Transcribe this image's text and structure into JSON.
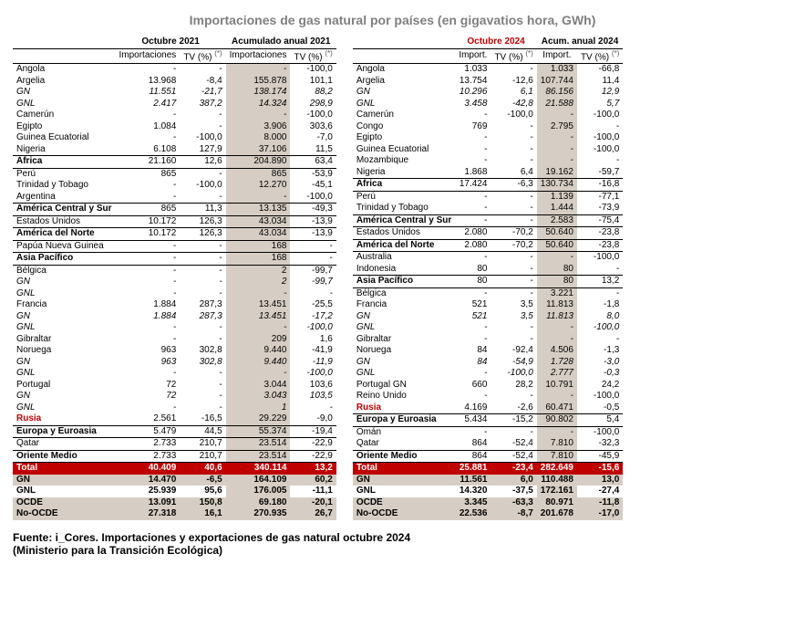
{
  "title": "Importaciones de gas natural por países (en gigavatios hora, GWh)",
  "sup": "(*)",
  "left": {
    "hdr_period": "Octubre 2021",
    "hdr_cum": "Acumulado anual 2021",
    "col_imp": "Importaciones",
    "col_tv": "TV (%)",
    "rows": [
      {
        "l": "Angola",
        "a": "-",
        "b": "-",
        "c": "-",
        "d": "-100,0"
      },
      {
        "l": "Argelia",
        "a": "13.968",
        "b": "-8,4",
        "c": "155.878",
        "d": "101,1"
      },
      {
        "l": "GN",
        "i": 1,
        "a": "11.551",
        "b": "-21,7",
        "c": "138.174",
        "d": "88,2"
      },
      {
        "l": "GNL",
        "i": 1,
        "a": "2.417",
        "b": "387,2",
        "c": "14.324",
        "d": "298,9"
      },
      {
        "l": "Camerún",
        "a": "-",
        "b": "-",
        "c": "-",
        "d": "-100,0"
      },
      {
        "l": "Egipto",
        "a": "1.084",
        "b": "-",
        "c": "3.906",
        "d": "303,6"
      },
      {
        "l": "Guinea Ecuatorial",
        "a": "-",
        "b": "-100,0",
        "c": "8.000",
        "d": "-7,0"
      },
      {
        "l": "Nigeria",
        "a": "6.108",
        "b": "127,9",
        "c": "37.106",
        "d": "11,5"
      },
      {
        "l": "África",
        "bold": 1,
        "rule": 1,
        "a": "21.160",
        "b": "12,6",
        "c": "204.890",
        "d": "63,4"
      },
      {
        "l": "Perú",
        "a": "865",
        "b": "-",
        "c": "865",
        "d": "-53,9"
      },
      {
        "l": "Trinidad y Tobago",
        "a": "-",
        "b": "-100,0",
        "c": "12.270",
        "d": "-45,1"
      },
      {
        "l": "Argentina",
        "a": "-",
        "b": "-",
        "c": "-",
        "d": "-100,0"
      },
      {
        "l": "América Central y Sur",
        "bold": 1,
        "rule": 1,
        "a": "865",
        "b": "11,3",
        "c": "13.135",
        "d": "-49,3"
      },
      {
        "l": "Estados Unidos",
        "a": "10.172",
        "b": "126,3",
        "c": "43.034",
        "d": "-13,9"
      },
      {
        "l": "América del Norte",
        "bold": 1,
        "rule": 1,
        "a": "10.172",
        "b": "126,3",
        "c": "43.034",
        "d": "-13,9"
      },
      {
        "l": "Papúa Nueva Guinea",
        "a": "-",
        "b": "-",
        "c": "168",
        "d": "-"
      },
      {
        "l": "Asia Pacífico",
        "bold": 1,
        "rule": 1,
        "a": "-",
        "b": "-",
        "c": "168",
        "d": "-"
      },
      {
        "l": "Bélgica",
        "a": "-",
        "b": "-",
        "c": "2",
        "d": "-99,7"
      },
      {
        "l": "GN",
        "i": 1,
        "a": "-",
        "b": "-",
        "c": "2",
        "d": "-99,7"
      },
      {
        "l": "GNL",
        "i": 1,
        "a": "-",
        "b": "-",
        "c": "-",
        "d": "-"
      },
      {
        "l": "Francia",
        "a": "1.884",
        "b": "287,3",
        "c": "13.451",
        "d": "-25,5"
      },
      {
        "l": "GN",
        "i": 1,
        "a": "1.884",
        "b": "287,3",
        "c": "13.451",
        "d": "-17,2"
      },
      {
        "l": "GNL",
        "i": 1,
        "a": "-",
        "b": "-",
        "c": "-",
        "d": "-100,0"
      },
      {
        "l": "Gibraltar",
        "a": "-",
        "b": "-",
        "c": "209",
        "d": "1,6"
      },
      {
        "l": "Noruega",
        "a": "963",
        "b": "302,8",
        "c": "9.440",
        "d": "-41,9"
      },
      {
        "l": "GN",
        "i": 1,
        "a": "963",
        "b": "302,8",
        "c": "9.440",
        "d": "-11,9"
      },
      {
        "l": "GNL",
        "i": 1,
        "a": "-",
        "b": "-",
        "c": "-",
        "d": "-100,0"
      },
      {
        "l": "Portugal",
        "a": "72",
        "b": "-",
        "c": "3.044",
        "d": "103,6"
      },
      {
        "l": "GN",
        "i": 1,
        "a": "72",
        "b": "-",
        "c": "3.043",
        "d": "103,5"
      },
      {
        "l": "GNL",
        "i": 1,
        "a": "-",
        "b": "-",
        "c": "1",
        "d": "-"
      },
      {
        "l": "Rusia",
        "red": 1,
        "a": "2.561",
        "b": "-16,5",
        "c": "29.229",
        "d": "-9,0"
      },
      {
        "l": "Europa y Euroasia",
        "bold": 1,
        "rule": 1,
        "a": "5.479",
        "b": "44,5",
        "c": "55.374",
        "d": "-19,4"
      },
      {
        "l": "Qatar",
        "a": "2.733",
        "b": "210,7",
        "c": "23.514",
        "d": "-22,9"
      },
      {
        "l": "Oriente Medio",
        "bold": 1,
        "rule": 1,
        "a": "2.733",
        "b": "210,7",
        "c": "23.514",
        "d": "-22,9"
      },
      {
        "l": "Total",
        "bg": 1,
        "a": "40.409",
        "b": "40,6",
        "c": "340.114",
        "d": "13,2"
      },
      {
        "l": "GN",
        "bold": 1,
        "sh": 1,
        "a": "14.470",
        "b": "-6,5",
        "c": "164.109",
        "d": "60,2"
      },
      {
        "l": "GNL",
        "bold": 1,
        "sd": 1,
        "a": "25.939",
        "b": "95,6",
        "c": "176.005",
        "d": "-11,1"
      },
      {
        "l": "OCDE",
        "bold": 1,
        "sh": 1,
        "a": "13.091",
        "b": "150,8",
        "c": "69.180",
        "d": "-20,1"
      },
      {
        "l": "No-OCDE",
        "bold": 1,
        "sh": 1,
        "a": "27.318",
        "b": "16,1",
        "c": "270.935",
        "d": "26,7"
      }
    ]
  },
  "right": {
    "hdr_period": "Octubre 2024",
    "hdr_cum": "Acum. anual 2024",
    "col_imp": "Import.",
    "col_tv": "TV (%)",
    "rows": [
      {
        "l": "Angola",
        "a": "1.033",
        "b": "-",
        "c": "1.033",
        "d": "-66,8"
      },
      {
        "l": "Argelia",
        "a": "13.754",
        "b": "-12,6",
        "c": "107.744",
        "d": "11,4"
      },
      {
        "l": "GN",
        "i": 1,
        "a": "10.296",
        "b": "6,1",
        "c": "86.156",
        "d": "12,9"
      },
      {
        "l": "GNL",
        "i": 1,
        "a": "3.458",
        "b": "-42,8",
        "c": "21.588",
        "d": "5,7"
      },
      {
        "l": "Camerún",
        "a": "-",
        "b": "-100,0",
        "c": "-",
        "d": "-100,0"
      },
      {
        "l": "Congo",
        "a": "769",
        "b": "-",
        "c": "2.795",
        "d": "-"
      },
      {
        "l": "Egipto",
        "a": "-",
        "b": "-",
        "c": "-",
        "d": "-100,0"
      },
      {
        "l": "Guinea Ecuatorial",
        "a": "-",
        "b": "-",
        "c": "-",
        "d": "-100,0"
      },
      {
        "l": "Mozambique",
        "a": "-",
        "b": "-",
        "c": "-",
        "d": "-"
      },
      {
        "l": "Nigeria",
        "a": "1.868",
        "b": "6,4",
        "c": "19.162",
        "d": "-59,7"
      },
      {
        "l": "África",
        "bold": 1,
        "rule": 1,
        "a": "17.424",
        "b": "-6,3",
        "c": "130.734",
        "d": "-16,8"
      },
      {
        "l": "Perú",
        "a": "-",
        "b": "-",
        "c": "1.139",
        "d": "-77,1"
      },
      {
        "l": "Trinidad y Tobago",
        "a": "-",
        "b": "-",
        "c": "1.444",
        "d": "-73,9"
      },
      {
        "l": "América Central y Sur",
        "bold": 1,
        "rule": 1,
        "a": "-",
        "b": "-",
        "c": "2.583",
        "d": "-75,4"
      },
      {
        "l": "Estados Unidos",
        "a": "2.080",
        "b": "-70,2",
        "c": "50.640",
        "d": "-23,8"
      },
      {
        "l": "América del Norte",
        "bold": 1,
        "rule": 1,
        "a": "2.080",
        "b": "-70,2",
        "c": "50.640",
        "d": "-23,8"
      },
      {
        "l": "Australia",
        "a": "-",
        "b": "-",
        "c": "-",
        "d": "-100,0"
      },
      {
        "l": "Indonesia",
        "a": "80",
        "b": "-",
        "c": "80",
        "d": "-"
      },
      {
        "l": "Asia Pacífico",
        "bold": 1,
        "rule": 1,
        "a": "80",
        "b": "-",
        "c": "80",
        "d": "13,2"
      },
      {
        "l": "Bélgica",
        "a": "-",
        "b": "-",
        "c": "3.221",
        "d": "-"
      },
      {
        "l": "Francia",
        "a": "521",
        "b": "3,5",
        "c": "11.813",
        "d": "-1,8"
      },
      {
        "l": "GN",
        "i": 1,
        "a": "521",
        "b": "3,5",
        "c": "11.813",
        "d": "8,0"
      },
      {
        "l": "GNL",
        "i": 1,
        "a": "-",
        "b": "-",
        "c": "-",
        "d": "-100,0"
      },
      {
        "l": "Gibraltar",
        "a": "-",
        "b": "-",
        "c": "-",
        "d": "-"
      },
      {
        "l": "Noruega",
        "a": "84",
        "b": "-92,4",
        "c": "4.506",
        "d": "-1,3"
      },
      {
        "l": "GN",
        "i": 1,
        "a": "84",
        "b": "-54,9",
        "c": "1.728",
        "d": "-3,0"
      },
      {
        "l": "GNL",
        "i": 1,
        "a": "-",
        "b": "-100,0",
        "c": "2.777",
        "d": "-0,3"
      },
      {
        "l": "Portugal GN",
        "a": "660",
        "b": "28,2",
        "c": "10.791",
        "d": "24,2"
      },
      {
        "l": "Reino Unido",
        "a": "-",
        "b": "-",
        "c": "-",
        "d": "-100,0"
      },
      {
        "l": "Rusia",
        "red": 1,
        "a": "4.169",
        "b": "-2,6",
        "c": "60.471",
        "d": "-0,5"
      },
      {
        "l": "Europa y Euroasia",
        "bold": 1,
        "rule": 1,
        "a": "5.434",
        "b": "-15,2",
        "c": "90.802",
        "d": "5,4"
      },
      {
        "l": "Omán",
        "a": "-",
        "b": "-",
        "c": "-",
        "d": "-100,0"
      },
      {
        "l": "Qatar",
        "a": "864",
        "b": "-52,4",
        "c": "7.810",
        "d": "-32,3"
      },
      {
        "l": "Oriente Medio",
        "bold": 1,
        "rule": 1,
        "a": "864",
        "b": "-52,4",
        "c": "7.810",
        "d": "-45,9"
      },
      {
        "l": "Total",
        "bg": 1,
        "a": "25.881",
        "b": "-23,4",
        "c": "282.649",
        "d": "-15,6"
      },
      {
        "l": "GN",
        "bold": 1,
        "sh": 1,
        "a": "11.561",
        "b": "6,0",
        "c": "110.488",
        "d": "13,0"
      },
      {
        "l": "GNL",
        "bold": 1,
        "sd": 1,
        "a": "14.320",
        "b": "-37,5",
        "c": "172.161",
        "d": "-27,4"
      },
      {
        "l": "OCDE",
        "bold": 1,
        "sh": 1,
        "a": "3.345",
        "b": "-63,3",
        "c": "80.971",
        "d": "-11,8"
      },
      {
        "l": "No-OCDE",
        "bold": 1,
        "sh": 1,
        "a": "22.536",
        "b": "-8,7",
        "c": "201.678",
        "d": "-17,0"
      }
    ]
  },
  "source": "Fuente: i_Cores. Importaciones y exportaciones de gas natural octubre 2024 (Ministerio para la Transición Ecológica)"
}
